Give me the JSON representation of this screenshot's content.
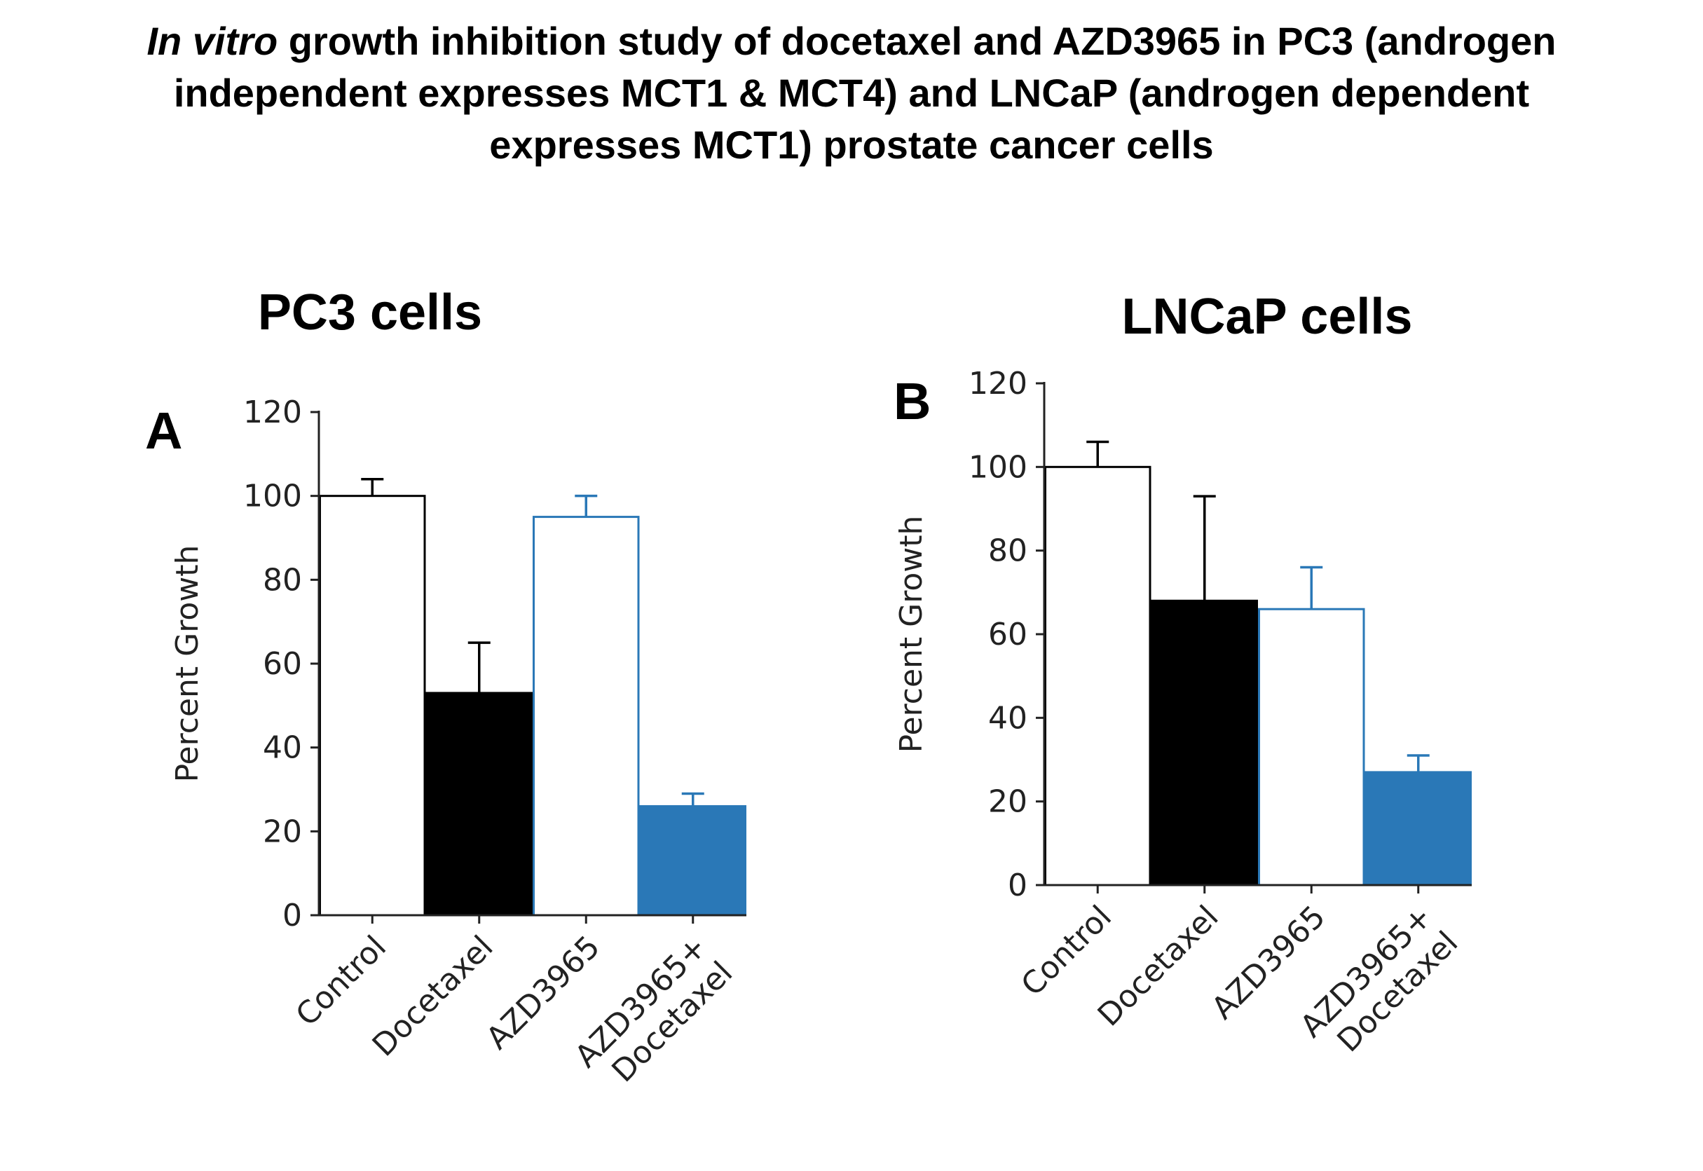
{
  "figure": {
    "title_italic": "In vitro",
    "title_rest_line1": "growth inhibition study of docetaxel and AZD3965 in PC3 (androgen",
    "title_line2": "independent expresses MCT1 & MCT4) and LNCaP (androgen dependent",
    "title_line3": "expresses MCT1) prostate cancer cells"
  },
  "colors": {
    "black": "#000000",
    "blue": "#2a78b7",
    "white": "#ffffff",
    "axis": "#222222"
  },
  "chart_data": [
    {
      "type": "bar",
      "panel_letter": "A",
      "title": "PC3 cells",
      "ylabel": "Percent Growth",
      "xlabel": "",
      "ylim": [
        0,
        120
      ],
      "yticks": [
        0,
        20,
        40,
        60,
        80,
        100,
        120
      ],
      "categories": [
        {
          "lines": [
            "Control"
          ]
        },
        {
          "lines": [
            "Docetaxel"
          ]
        },
        {
          "lines": [
            "AZD3965"
          ]
        },
        {
          "lines": [
            "AZD3965+",
            "Docetaxel"
          ]
        }
      ],
      "values": [
        100,
        53,
        95,
        26
      ],
      "errors": [
        4,
        12,
        5,
        3
      ],
      "bar_styles": [
        {
          "fill": "#ffffff",
          "stroke": "#000000"
        },
        {
          "fill": "#000000",
          "stroke": "#000000"
        },
        {
          "fill": "#ffffff",
          "stroke": "#2a78b7"
        },
        {
          "fill": "#2a78b7",
          "stroke": "#2a78b7"
        }
      ]
    },
    {
      "type": "bar",
      "panel_letter": "B",
      "title": "LNCaP cells",
      "ylabel": "Percent Growth",
      "xlabel": "",
      "ylim": [
        0,
        120
      ],
      "yticks": [
        0,
        20,
        40,
        60,
        80,
        100,
        120
      ],
      "categories": [
        {
          "lines": [
            "Control"
          ]
        },
        {
          "lines": [
            "Docetaxel"
          ]
        },
        {
          "lines": [
            "AZD3965"
          ]
        },
        {
          "lines": [
            "AZD3965+",
            "Docetaxel"
          ]
        }
      ],
      "values": [
        100,
        68,
        66,
        27
      ],
      "errors": [
        6,
        25,
        10,
        4
      ],
      "bar_styles": [
        {
          "fill": "#ffffff",
          "stroke": "#000000"
        },
        {
          "fill": "#000000",
          "stroke": "#000000"
        },
        {
          "fill": "#ffffff",
          "stroke": "#2a78b7"
        },
        {
          "fill": "#2a78b7",
          "stroke": "#2a78b7"
        }
      ]
    }
  ]
}
